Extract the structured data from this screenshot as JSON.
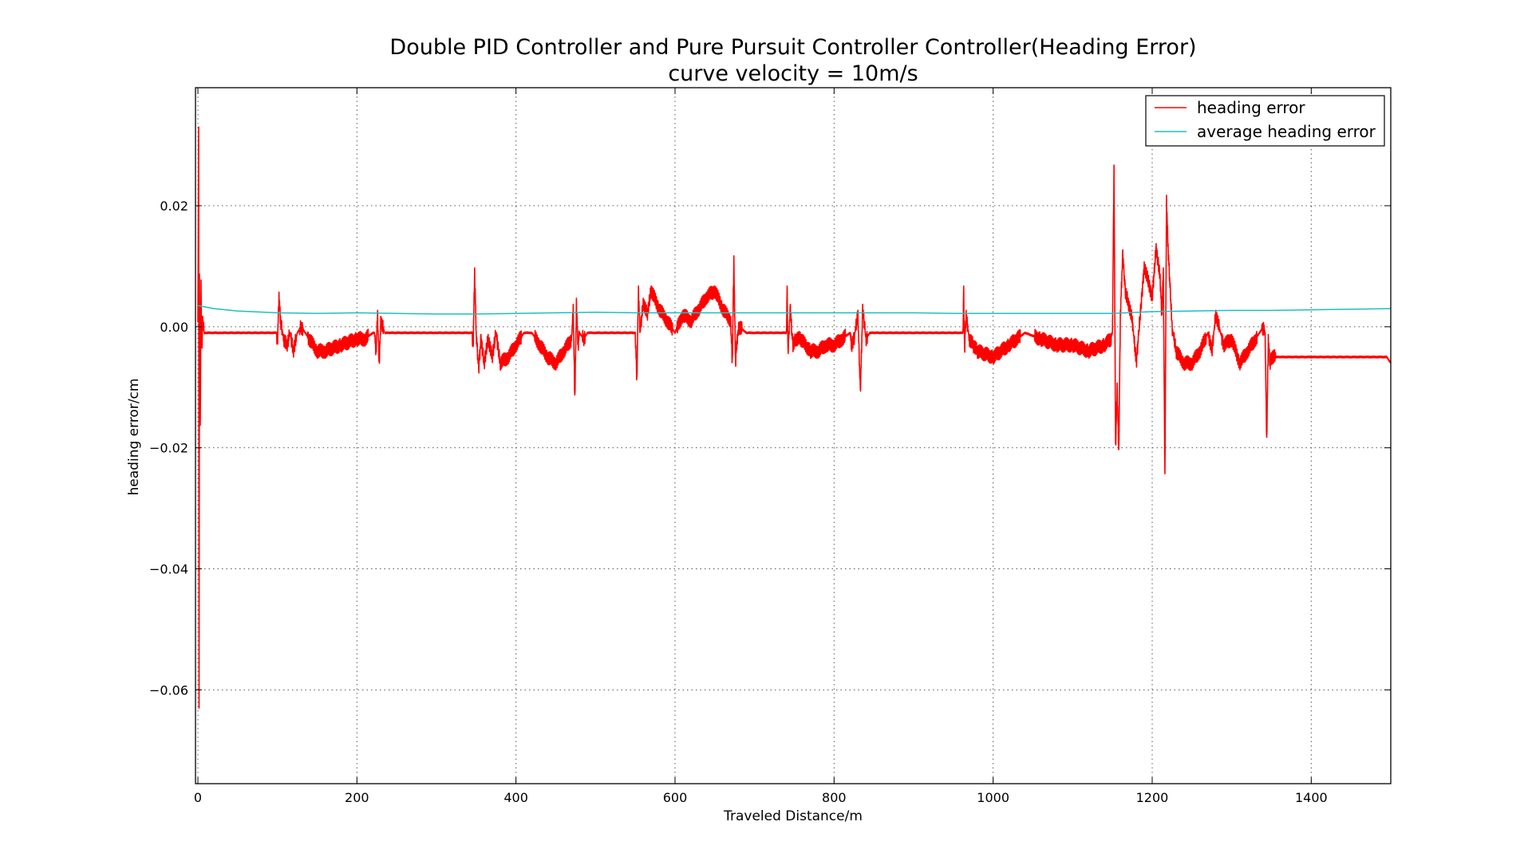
{
  "chart_data": {
    "type": "line",
    "title": "Double PID Controller and Pure Pursuit Controller Controller(Heading Error)",
    "subtitle": "curve velocity = 10m/s",
    "xlabel": "Traveled Distance/m",
    "ylabel": "heading error/cm",
    "xlim": [
      -3,
      1500
    ],
    "ylim": [
      -0.0755,
      0.0395
    ],
    "xticks": [
      0,
      200,
      400,
      600,
      800,
      1000,
      1200,
      1400
    ],
    "xtick_labels": [
      "0",
      "200",
      "400",
      "600",
      "800",
      "1000",
      "1200",
      "1400"
    ],
    "yticks": [
      0.02,
      0.0,
      -0.02,
      -0.04,
      -0.06
    ],
    "ytick_labels": [
      "0.02",
      "0.00",
      "−0.02",
      "−0.04",
      "−0.06"
    ],
    "grid": true,
    "legend_position": "upper-right",
    "series": [
      {
        "name": "heading error",
        "color": "#ff0000",
        "style": "noisy",
        "x": [
          0,
          1,
          1.5,
          2,
          3,
          4,
          5,
          6,
          8,
          10,
          30,
          60,
          99,
          100,
          102,
          104,
          108,
          112,
          116,
          120,
          125,
          130,
          140,
          150,
          160,
          180,
          200,
          210,
          220,
          222,
          224,
          226,
          228,
          230,
          235,
          240,
          300,
          345,
          346,
          348,
          350,
          353,
          356,
          360,
          365,
          370,
          375,
          380,
          390,
          400,
          410,
          420,
          430,
          440,
          450,
          460,
          470,
          472,
          474,
          476,
          478,
          480,
          485,
          490,
          500,
          550,
          552,
          554,
          556,
          560,
          565,
          570,
          580,
          590,
          600,
          610,
          620,
          630,
          640,
          650,
          660,
          670,
          672,
          674,
          676,
          678,
          680,
          690,
          700,
          740,
          741,
          742,
          745,
          748,
          752,
          758,
          770,
          780,
          790,
          800,
          810,
          820,
          822,
          825,
          830,
          833,
          836,
          840,
          845,
          850,
          900,
          962,
          963,
          964,
          966,
          970,
          975,
          980,
          1000,
          1020,
          1040,
          1060,
          1080,
          1100,
          1120,
          1140,
          1148,
          1150,
          1152,
          1154,
          1156,
          1158,
          1160,
          1163,
          1166,
          1170,
          1175,
          1180,
          1190,
          1200,
          1205,
          1210,
          1212,
          1214,
          1216,
          1218,
          1220,
          1225,
          1230,
          1240,
          1250,
          1260,
          1270,
          1275,
          1280,
          1290,
          1300,
          1310,
          1320,
          1330,
          1340,
          1342,
          1344,
          1346,
          1348,
          1350,
          1355,
          1360,
          1400,
          1450,
          1495,
          1500
        ],
        "y": [
          0.0,
          0.033,
          -0.063,
          0.008,
          -0.017,
          0.007,
          -0.004,
          0.001,
          -0.001,
          -0.001,
          -0.001,
          -0.001,
          -0.001,
          -0.003,
          0.005,
          0.001,
          -0.002,
          -0.003,
          -0.001,
          -0.004,
          -0.001,
          0.0,
          -0.002,
          -0.004,
          -0.004,
          -0.003,
          -0.002,
          -0.002,
          -0.001,
          -0.001,
          -0.004,
          0.002,
          -0.006,
          0.001,
          -0.001,
          -0.001,
          -0.001,
          -0.001,
          -0.004,
          0.009,
          -0.001,
          -0.007,
          -0.002,
          -0.006,
          -0.002,
          -0.005,
          -0.001,
          -0.006,
          -0.005,
          -0.003,
          -0.001,
          -0.001,
          -0.003,
          -0.005,
          -0.006,
          -0.004,
          -0.002,
          0.003,
          -0.012,
          0.004,
          -0.003,
          -0.001,
          -0.002,
          -0.001,
          -0.001,
          -0.001,
          -0.009,
          0.006,
          -0.001,
          0.004,
          0.002,
          0.006,
          0.003,
          0.001,
          -0.001,
          0.002,
          0.001,
          0.003,
          0.005,
          0.006,
          0.003,
          0.001,
          -0.006,
          0.011,
          -0.006,
          -0.002,
          0.0,
          -0.001,
          -0.001,
          -0.001,
          0.006,
          -0.004,
          0.003,
          -0.003,
          -0.002,
          -0.002,
          -0.004,
          -0.004,
          -0.003,
          -0.003,
          -0.002,
          -0.001,
          -0.003,
          -0.002,
          0.002,
          -0.011,
          0.003,
          -0.002,
          -0.001,
          -0.001,
          -0.001,
          -0.001,
          0.006,
          -0.004,
          0.002,
          -0.002,
          -0.003,
          -0.004,
          -0.005,
          -0.003,
          -0.001,
          -0.002,
          -0.003,
          -0.003,
          -0.004,
          -0.003,
          -0.002,
          -0.001,
          0.026,
          -0.02,
          -0.01,
          -0.021,
          0.002,
          0.012,
          0.006,
          0.004,
          0.001,
          -0.006,
          0.01,
          0.005,
          0.013,
          0.008,
          0.002,
          0.009,
          -0.025,
          0.021,
          0.013,
          0.0,
          -0.004,
          -0.006,
          -0.006,
          -0.004,
          -0.001,
          -0.004,
          0.002,
          -0.003,
          -0.002,
          -0.006,
          -0.004,
          -0.002,
          0.0,
          -0.001,
          -0.019,
          -0.002,
          -0.006,
          -0.005,
          -0.005,
          -0.005,
          -0.005,
          -0.005,
          -0.005,
          -0.006
        ]
      },
      {
        "name": "average heading error",
        "color": "#1fbfbf",
        "style": "smooth",
        "x": [
          0,
          20,
          50,
          100,
          150,
          200,
          250,
          300,
          350,
          400,
          450,
          500,
          550,
          600,
          650,
          700,
          750,
          800,
          850,
          900,
          950,
          1000,
          1050,
          1100,
          1150,
          1200,
          1250,
          1300,
          1350,
          1400,
          1450,
          1500
        ],
        "y": [
          0.0035,
          0.003,
          0.0026,
          0.0023,
          0.0022,
          0.0023,
          0.0022,
          0.0021,
          0.0021,
          0.0022,
          0.0023,
          0.0024,
          0.0023,
          0.0023,
          0.0023,
          0.0023,
          0.0023,
          0.0023,
          0.0023,
          0.0023,
          0.0022,
          0.0022,
          0.0022,
          0.0022,
          0.0022,
          0.0025,
          0.0026,
          0.0027,
          0.0027,
          0.0028,
          0.0029,
          0.003
        ]
      }
    ]
  }
}
